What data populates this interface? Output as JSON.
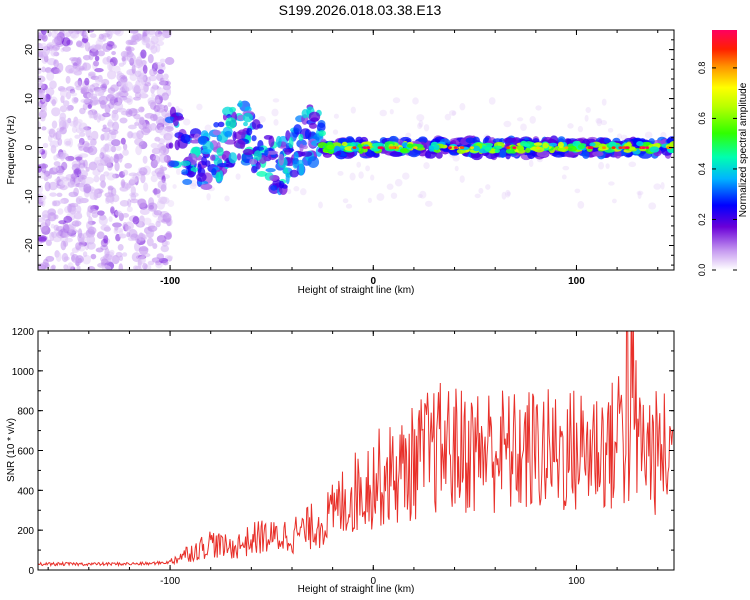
{
  "title": "S199.2026.018.03.38.E13",
  "chart_data": [
    {
      "type": "heatmap",
      "title": "S199.2026.018.03.38.E13",
      "xlabel": "Height of straight line (km)",
      "ylabel": "Frequency (Hz)",
      "xlim": [
        -165,
        148
      ],
      "ylim": [
        -25,
        24
      ],
      "xticks": [
        -100,
        0,
        100
      ],
      "yticks": [
        -20,
        -10,
        0,
        10,
        20
      ],
      "colorbar": {
        "label": "Normalized spectral amplitude",
        "range": [
          0,
          0.95
        ],
        "ticks": [
          0.0,
          0.2,
          0.4,
          0.6,
          0.8
        ]
      },
      "features": [
        {
          "name": "noise region",
          "x_range": [
            -165,
            -100
          ],
          "freq_range": [
            -25,
            24
          ],
          "amplitude": 0.05
        },
        {
          "name": "scattered segment",
          "x_range": [
            -100,
            -25
          ],
          "freq_range": [
            -10,
            8
          ],
          "amplitude": 0.2
        },
        {
          "name": "main trace",
          "x_range": [
            -25,
            148
          ],
          "freq_center": 0,
          "amplitude_peak": 0.95
        }
      ]
    },
    {
      "type": "line",
      "xlabel": "Height of straight line (km)",
      "ylabel": "SNR (10 * v/v)",
      "xlim": [
        -165,
        148
      ],
      "ylim": [
        0,
        1200
      ],
      "xticks": [
        -100,
        0,
        100
      ],
      "yticks": [
        0,
        200,
        400,
        600,
        800,
        1000,
        1200
      ],
      "series": [
        {
          "name": "SNR",
          "color": "#e8302a",
          "x": [
            -165,
            -150,
            -130,
            -110,
            -100,
            -95,
            -85,
            -80,
            -75,
            -70,
            -65,
            -60,
            -55,
            -50,
            -45,
            -40,
            -35,
            -30,
            -25,
            -20,
            -15,
            -10,
            -5,
            0,
            5,
            10,
            15,
            20,
            25,
            30,
            35,
            40,
            50,
            60,
            70,
            80,
            90,
            100,
            110,
            120,
            125,
            130,
            140,
            148
          ],
          "values": [
            30,
            30,
            30,
            32,
            40,
            70,
            110,
            140,
            120,
            110,
            130,
            150,
            170,
            160,
            170,
            180,
            190,
            220,
            240,
            280,
            340,
            380,
            420,
            450,
            470,
            480,
            500,
            540,
            580,
            600,
            620,
            600,
            600,
            610,
            580,
            600,
            590,
            600,
            620,
            620,
            1200,
            640,
            580,
            600
          ]
        }
      ]
    }
  ]
}
